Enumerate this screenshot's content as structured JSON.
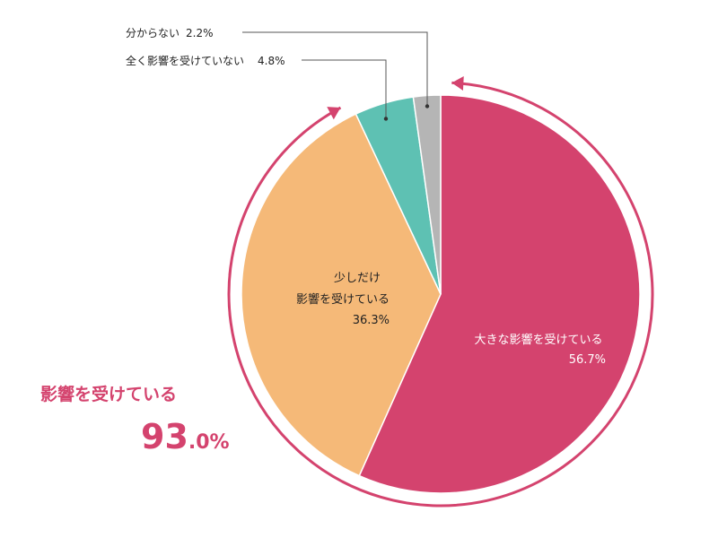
{
  "chart_data": {
    "type": "pie",
    "slices": [
      {
        "name": "大きな影響を受けている",
        "value_label": "56.7%",
        "value": 56.7,
        "color": "#d4436e"
      },
      {
        "name_lines": [
          "少しだけ",
          "影響を受けている"
        ],
        "value_label": "36.3%",
        "value": 36.3,
        "color": "#f5b978"
      },
      {
        "name": "全く影響を受けていない",
        "value_label": "4.8%",
        "value": 4.8,
        "color": "#5ec1b3"
      },
      {
        "name": "分からない",
        "value_label": "2.2%",
        "value": 2.2,
        "color": "#b5b5b5"
      }
    ],
    "summary": {
      "label": "影響を受けている",
      "value_main": "93",
      "value_rest": ".0%",
      "value": 93.0,
      "color": "#d4436e"
    },
    "arc_color": "#d4436e",
    "leader_color": "#555555"
  }
}
